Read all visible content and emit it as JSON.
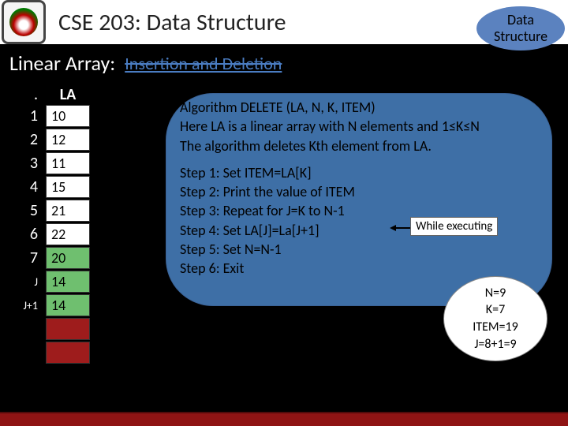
{
  "header": {
    "title": "CSE 203: Data Structure",
    "badge_line1": "Data",
    "badge_line2": "Structure"
  },
  "subtitle": {
    "label": "Linear Array:",
    "topic": "Insertion and Deletion"
  },
  "array": {
    "dot": ".",
    "header": "LA",
    "rows": [
      {
        "idx": "1",
        "val": "10",
        "bg": "#ffffff",
        "small": false
      },
      {
        "idx": "2",
        "val": "12",
        "bg": "#ffffff",
        "small": false
      },
      {
        "idx": "3",
        "val": "11",
        "bg": "#ffffff",
        "small": false
      },
      {
        "idx": "4",
        "val": "15",
        "bg": "#ffffff",
        "small": false
      },
      {
        "idx": "5",
        "val": "21",
        "bg": "#ffffff",
        "small": false
      },
      {
        "idx": "6",
        "val": "22",
        "bg": "#ffffff",
        "small": false
      },
      {
        "idx": "7",
        "val": "20",
        "bg": "#6fbf6f",
        "small": false
      },
      {
        "idx": "J",
        "val": "14",
        "bg": "#6fbf6f",
        "small": true
      },
      {
        "idx": "J+1",
        "val": "14",
        "bg": "#6fbf6f",
        "small": true
      },
      {
        "idx": "",
        "val": "",
        "bg": "#9e1c1c",
        "small": false
      },
      {
        "idx": "",
        "val": "",
        "bg": "#9e1c1c",
        "small": false
      }
    ]
  },
  "algorithm": {
    "line1": "Algorithm DELETE (LA, N, K, ITEM)",
    "line2": "Here LA is a linear array with N elements and 1≤K≤N",
    "line3": "The algorithm deletes Kth element from LA.",
    "step1": "Step 1: Set ITEM=LA[K]",
    "step2": "Step 2: Print the value of ITEM",
    "step3": "Step 3: Repeat for J=K to N-1",
    "step4": "Step 4: Set LA[J]=La[J+1]",
    "step5": "Step 5: Set N=N-1",
    "step6": "Step 6: Exit"
  },
  "annotation": {
    "while_label": "While executing"
  },
  "state": {
    "l1": "N=9",
    "l2": "K=7",
    "l3": "ITEM=19",
    "l4": "J=8+1=9"
  },
  "colors": {
    "slide_bg": "#000000",
    "header_bg": "#ffffff",
    "badge_bg": "#5b82bf",
    "algo_bg": "#3e6fa6",
    "bottom_bar": "#8f1414",
    "cell_green": "#6fbf6f",
    "cell_red": "#9e1c1c",
    "cell_white": "#ffffff",
    "link_blue": "#4a7cc1"
  }
}
